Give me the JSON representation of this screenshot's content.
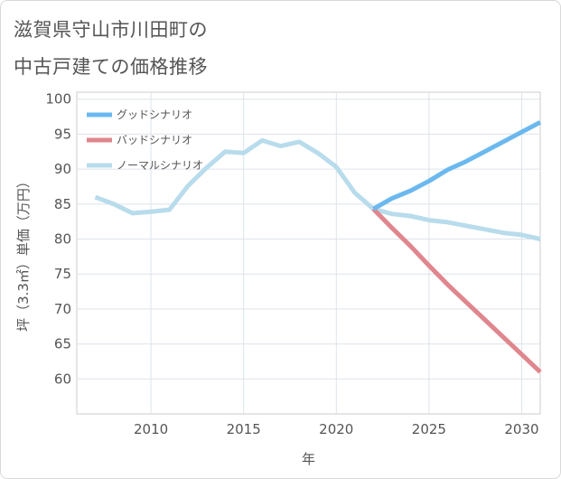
{
  "title_lines": [
    "滋賀県守山市川田町の",
    "中古戸建ての価格推移"
  ],
  "chart_data": {
    "type": "line",
    "title": "滋賀県守山市川田町の中古戸建ての価格推移",
    "xlabel": "年",
    "ylabel": "坪（3.3㎡）単価（万円）",
    "xlim": [
      2006,
      2031
    ],
    "ylim": [
      55,
      101
    ],
    "xticks": [
      2010,
      2015,
      2020,
      2025,
      2030
    ],
    "yticks": [
      60,
      65,
      70,
      75,
      80,
      85,
      90,
      95,
      100
    ],
    "grid": true,
    "legend_position": "top-left",
    "series": [
      {
        "name": "グッドシナリオ",
        "color": "#6bb8ee",
        "x": [
          2022,
          2023,
          2024,
          2025,
          2026,
          2027,
          2028,
          2029,
          2030,
          2031
        ],
        "y": [
          84.3,
          85.8,
          86.9,
          88.3,
          89.9,
          91.1,
          92.5,
          93.9,
          95.3,
          96.7
        ]
      },
      {
        "name": "バッドシナリオ",
        "color": "#e0868e",
        "x": [
          2022,
          2023,
          2024,
          2025,
          2026,
          2027,
          2028,
          2029,
          2030,
          2031
        ],
        "y": [
          84.3,
          81.6,
          79.0,
          76.2,
          73.5,
          71.0,
          68.5,
          66.0,
          63.5,
          61.0
        ]
      },
      {
        "name": "ノーマルシナリオ",
        "color": "#b8dcec",
        "x": [
          2007,
          2008,
          2009,
          2010,
          2011,
          2012,
          2013,
          2014,
          2015,
          2016,
          2017,
          2018,
          2019,
          2020,
          2021,
          2022,
          2023,
          2024,
          2025,
          2026,
          2027,
          2028,
          2029,
          2030,
          2031
        ],
        "y": [
          86.0,
          85.0,
          83.7,
          83.9,
          84.2,
          87.6,
          90.2,
          92.5,
          92.3,
          94.1,
          93.3,
          93.9,
          92.3,
          90.3,
          86.6,
          84.3,
          83.6,
          83.3,
          82.7,
          82.4,
          81.9,
          81.4,
          80.9,
          80.6,
          80.0
        ]
      }
    ]
  }
}
